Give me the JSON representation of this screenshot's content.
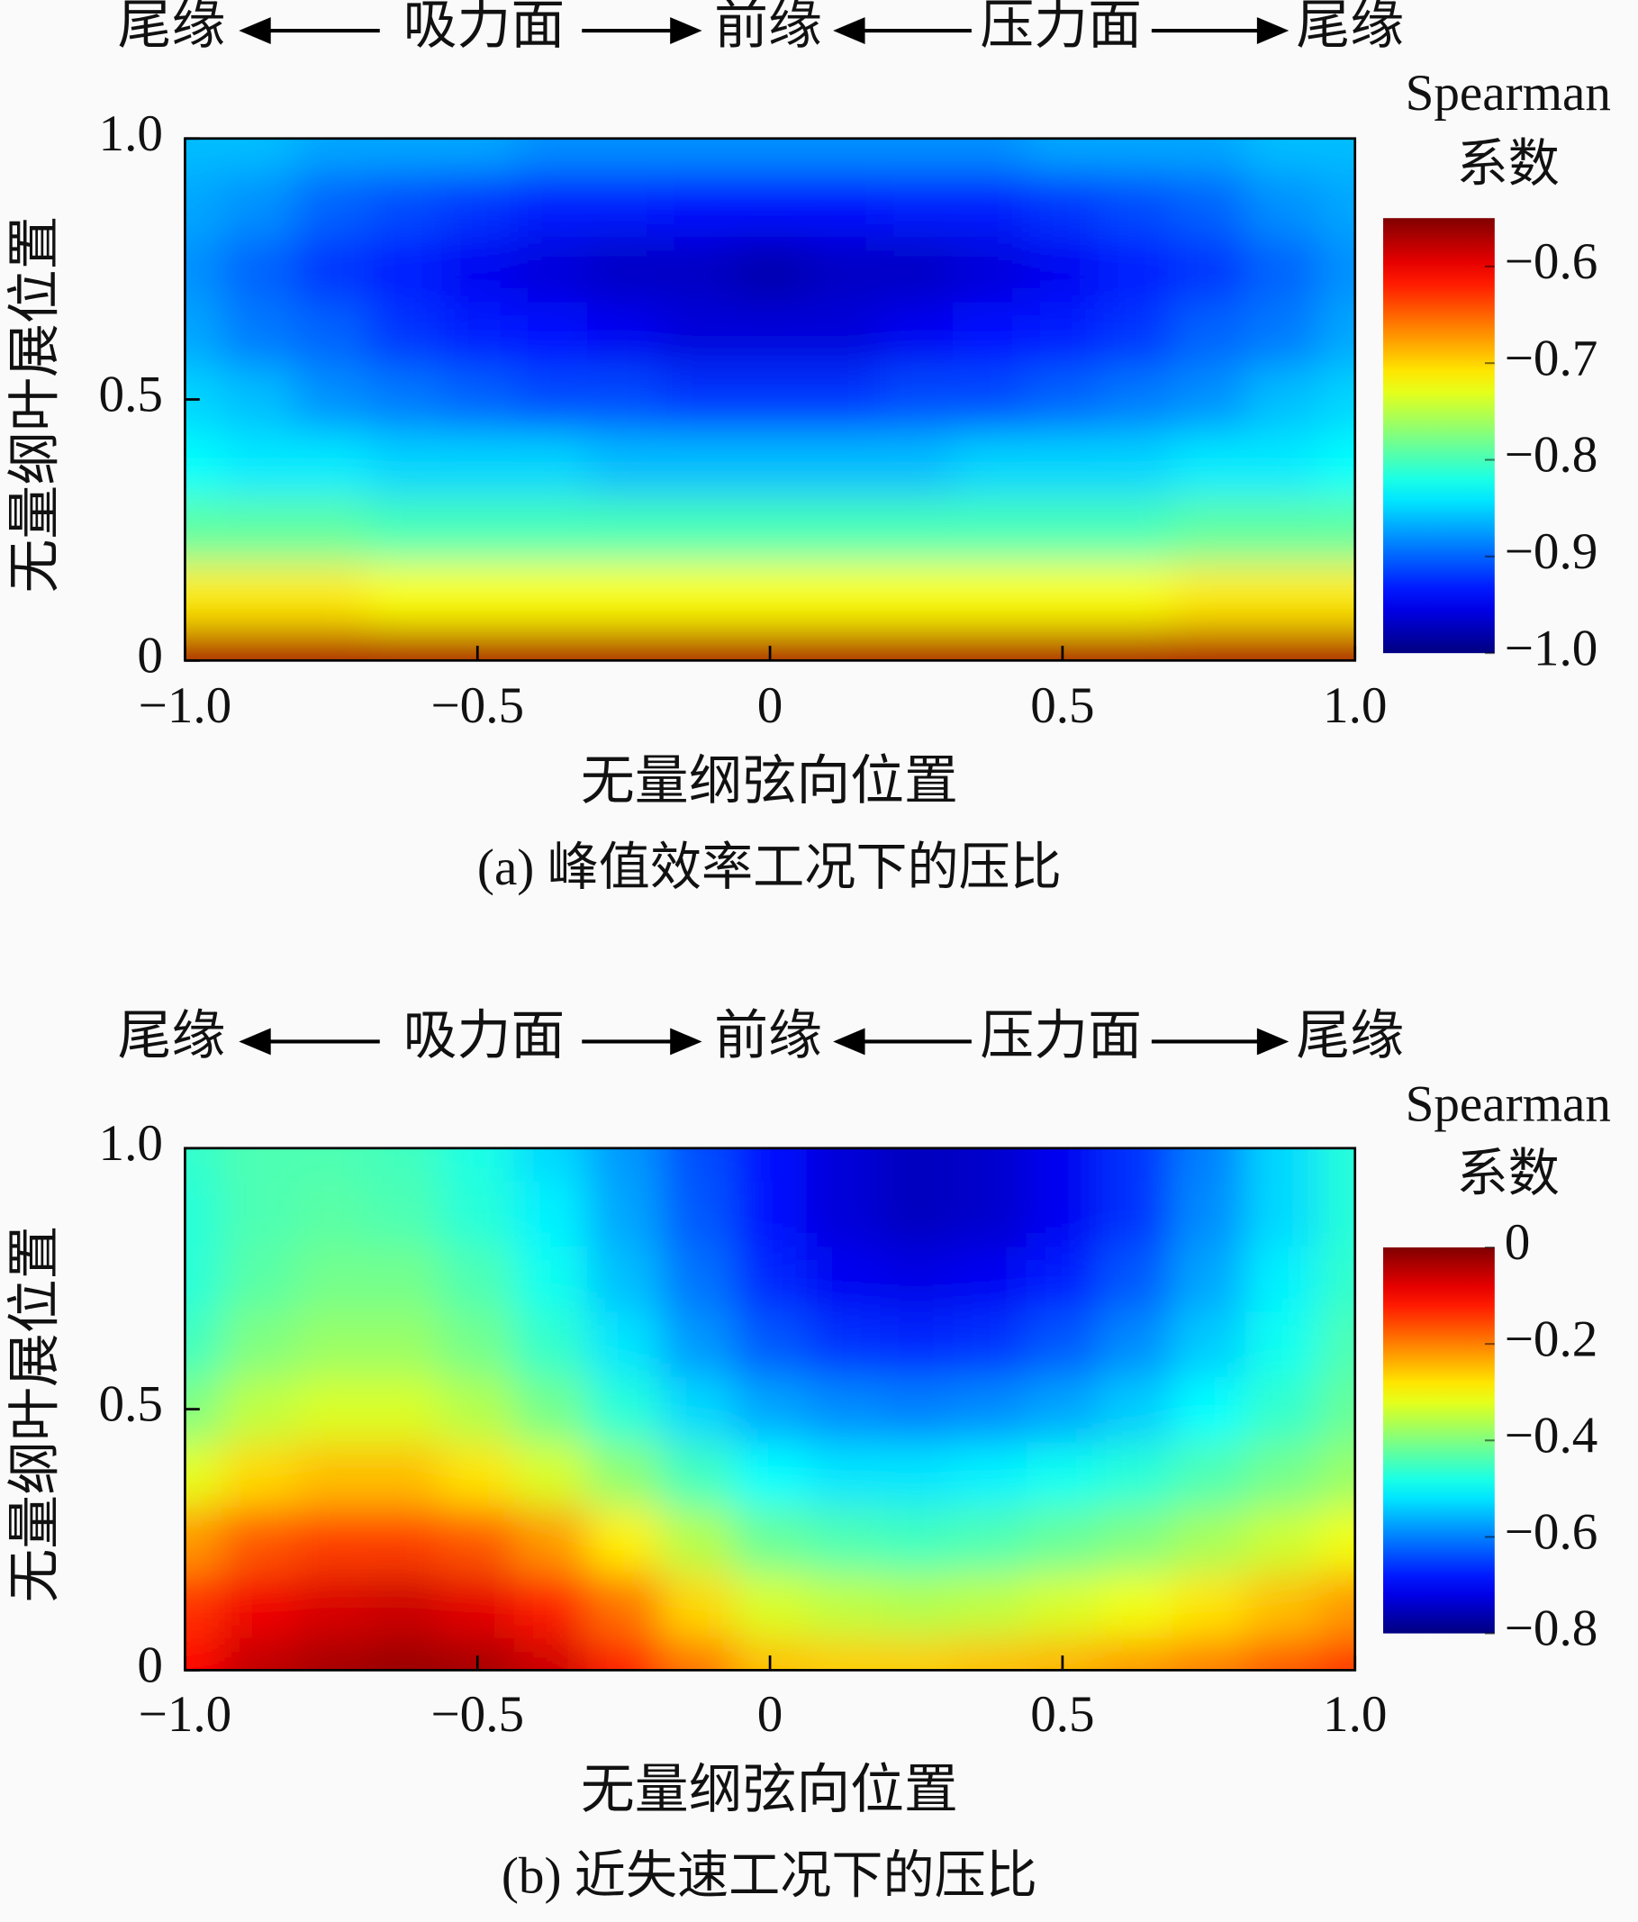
{
  "chart_data": [
    {
      "type": "heatmap",
      "caption": "(a) 峰值效率工况下的压比",
      "header": [
        "尾缘",
        "吸力面",
        "前缘",
        "压力面",
        "尾缘"
      ],
      "xlabel": "无量纲弦向位置",
      "ylabel": "无量纲叶展位置",
      "colorbar_title": [
        "Spearman",
        "系数"
      ],
      "colormap": "jet",
      "xlim": [
        -1,
        1
      ],
      "ylim": [
        0,
        1
      ],
      "zlim": [
        -1,
        -0.55
      ],
      "xticks": [
        {
          "value": -1,
          "label": "−1.0"
        },
        {
          "value": -0.5,
          "label": "−0.5"
        },
        0,
        0.5,
        {
          "value": 1,
          "label": "1.0"
        }
      ],
      "yticks": [
        0,
        0.5,
        {
          "value": 1,
          "label": "1.0"
        }
      ],
      "zticks": [
        {
          "value": -0.6,
          "label": "−0.6"
        },
        {
          "value": -0.7,
          "label": "−0.7"
        },
        {
          "value": -0.8,
          "label": "−0.8"
        },
        {
          "value": -0.9,
          "label": "−0.9"
        },
        {
          "value": -1,
          "label": "−1.0"
        }
      ],
      "x": [
        -1,
        -0.875,
        -0.75,
        -0.625,
        -0.5,
        -0.375,
        -0.25,
        -0.125,
        0,
        0.125,
        0.25,
        0.375,
        0.5,
        0.625,
        0.75,
        0.875,
        1
      ],
      "y": [
        0,
        0.125,
        0.25,
        0.375,
        0.5,
        0.625,
        0.75,
        0.875,
        1
      ],
      "z": [
        [
          -0.57,
          -0.57,
          -0.57,
          -0.57,
          -0.57,
          -0.57,
          -0.57,
          -0.57,
          -0.57,
          -0.57,
          -0.57,
          -0.57,
          -0.57,
          -0.57,
          -0.57,
          -0.57,
          -0.57
        ],
        [
          -0.71,
          -0.71,
          -0.71,
          -0.72,
          -0.72,
          -0.72,
          -0.72,
          -0.72,
          -0.72,
          -0.72,
          -0.72,
          -0.72,
          -0.72,
          -0.72,
          -0.71,
          -0.71,
          -0.71
        ],
        [
          -0.79,
          -0.79,
          -0.79,
          -0.8,
          -0.8,
          -0.8,
          -0.8,
          -0.8,
          -0.8,
          -0.8,
          -0.8,
          -0.8,
          -0.8,
          -0.8,
          -0.79,
          -0.79,
          -0.79
        ],
        [
          -0.83,
          -0.84,
          -0.84,
          -0.85,
          -0.85,
          -0.85,
          -0.86,
          -0.86,
          -0.86,
          -0.86,
          -0.86,
          -0.85,
          -0.85,
          -0.85,
          -0.84,
          -0.84,
          -0.83
        ],
        [
          -0.85,
          -0.86,
          -0.88,
          -0.89,
          -0.9,
          -0.91,
          -0.91,
          -0.92,
          -0.92,
          -0.92,
          -0.91,
          -0.91,
          -0.9,
          -0.89,
          -0.88,
          -0.86,
          -0.85
        ],
        [
          -0.87,
          -0.89,
          -0.9,
          -0.92,
          -0.93,
          -0.94,
          -0.95,
          -0.96,
          -0.96,
          -0.96,
          -0.95,
          -0.94,
          -0.93,
          -0.92,
          -0.9,
          -0.89,
          -0.87
        ],
        [
          -0.88,
          -0.9,
          -0.92,
          -0.93,
          -0.95,
          -0.96,
          -0.97,
          -0.97,
          -0.98,
          -0.97,
          -0.97,
          -0.96,
          -0.95,
          -0.93,
          -0.92,
          -0.9,
          -0.88
        ],
        [
          -0.87,
          -0.88,
          -0.9,
          -0.91,
          -0.92,
          -0.93,
          -0.93,
          -0.94,
          -0.94,
          -0.94,
          -0.93,
          -0.93,
          -0.92,
          -0.91,
          -0.9,
          -0.88,
          -0.87
        ],
        [
          -0.86,
          -0.86,
          -0.87,
          -0.87,
          -0.87,
          -0.88,
          -0.88,
          -0.88,
          -0.88,
          -0.88,
          -0.88,
          -0.88,
          -0.87,
          -0.87,
          -0.87,
          -0.86,
          -0.86
        ]
      ]
    },
    {
      "type": "heatmap",
      "caption": "(b) 近失速工况下的压比",
      "header": [
        "尾缘",
        "吸力面",
        "前缘",
        "压力面",
        "尾缘"
      ],
      "xlabel": "无量纲弦向位置",
      "ylabel": "无量纲叶展位置",
      "colorbar_title": [
        "Spearman",
        "系数"
      ],
      "colormap": "jet",
      "xlim": [
        -1,
        1
      ],
      "ylim": [
        0,
        1
      ],
      "zlim": [
        -0.8,
        0
      ],
      "xticks": [
        {
          "value": -1,
          "label": "−1.0"
        },
        {
          "value": -0.5,
          "label": "−0.5"
        },
        0,
        0.5,
        {
          "value": 1,
          "label": "1.0"
        }
      ],
      "yticks": [
        0,
        0.5,
        {
          "value": 1,
          "label": "1.0"
        }
      ],
      "zticks": [
        0,
        {
          "value": -0.2,
          "label": "−0.2"
        },
        {
          "value": -0.4,
          "label": "−0.4"
        },
        {
          "value": -0.6,
          "label": "−0.6"
        },
        {
          "value": -0.8,
          "label": "−0.8"
        }
      ],
      "x": [
        -1,
        -0.875,
        -0.75,
        -0.625,
        -0.5,
        -0.375,
        -0.25,
        -0.125,
        0,
        0.125,
        0.25,
        0.375,
        0.5,
        0.625,
        0.75,
        0.875,
        1
      ],
      "y": [
        0,
        0.125,
        0.25,
        0.375,
        0.5,
        0.625,
        0.75,
        0.875,
        1
      ],
      "z": [
        [
          -0.1,
          -0.05,
          -0.03,
          -0.02,
          -0.03,
          -0.06,
          -0.12,
          -0.19,
          -0.25,
          -0.26,
          -0.26,
          -0.25,
          -0.24,
          -0.22,
          -0.2,
          -0.17,
          -0.14
        ],
        [
          -0.14,
          -0.09,
          -0.07,
          -0.06,
          -0.08,
          -0.12,
          -0.19,
          -0.27,
          -0.33,
          -0.35,
          -0.36,
          -0.35,
          -0.33,
          -0.31,
          -0.28,
          -0.25,
          -0.22
        ],
        [
          -0.22,
          -0.17,
          -0.15,
          -0.15,
          -0.17,
          -0.22,
          -0.29,
          -0.36,
          -0.42,
          -0.44,
          -0.45,
          -0.44,
          -0.42,
          -0.4,
          -0.37,
          -0.34,
          -0.31
        ],
        [
          -0.32,
          -0.27,
          -0.25,
          -0.25,
          -0.28,
          -0.33,
          -0.39,
          -0.45,
          -0.5,
          -0.52,
          -0.52,
          -0.51,
          -0.49,
          -0.47,
          -0.44,
          -0.41,
          -0.38
        ],
        [
          -0.4,
          -0.35,
          -0.33,
          -0.33,
          -0.36,
          -0.41,
          -0.47,
          -0.53,
          -0.57,
          -0.59,
          -0.6,
          -0.59,
          -0.57,
          -0.54,
          -0.5,
          -0.46,
          -0.42
        ],
        [
          -0.45,
          -0.4,
          -0.38,
          -0.38,
          -0.41,
          -0.46,
          -0.52,
          -0.58,
          -0.63,
          -0.66,
          -0.67,
          -0.66,
          -0.63,
          -0.59,
          -0.54,
          -0.49,
          -0.44
        ],
        [
          -0.47,
          -0.43,
          -0.41,
          -0.41,
          -0.44,
          -0.49,
          -0.55,
          -0.61,
          -0.67,
          -0.71,
          -0.72,
          -0.71,
          -0.68,
          -0.63,
          -0.57,
          -0.51,
          -0.46
        ],
        [
          -0.47,
          -0.44,
          -0.43,
          -0.44,
          -0.47,
          -0.51,
          -0.57,
          -0.63,
          -0.69,
          -0.73,
          -0.75,
          -0.74,
          -0.71,
          -0.66,
          -0.59,
          -0.53,
          -0.47
        ],
        [
          -0.46,
          -0.44,
          -0.44,
          -0.45,
          -0.48,
          -0.53,
          -0.58,
          -0.64,
          -0.69,
          -0.73,
          -0.75,
          -0.74,
          -0.71,
          -0.66,
          -0.6,
          -0.53,
          -0.47
        ]
      ]
    }
  ]
}
